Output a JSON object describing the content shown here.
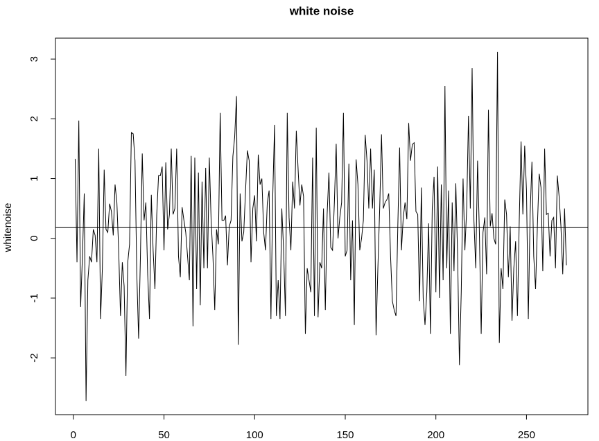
{
  "chart_data": {
    "type": "line",
    "title": "white noise",
    "ylabel": "whitenoise",
    "x": [
      1,
      2,
      3,
      4,
      5,
      6,
      7,
      8,
      9,
      10,
      11,
      12,
      13,
      14,
      15,
      16,
      17,
      18,
      19,
      20,
      21,
      22,
      23,
      24,
      25,
      26,
      27,
      28,
      29,
      30,
      31,
      32,
      33,
      34,
      35,
      36,
      37,
      38,
      39,
      40,
      41,
      42,
      43,
      44,
      45,
      46,
      47,
      48,
      49,
      50,
      51,
      52,
      53,
      54,
      55,
      56,
      57,
      58,
      59,
      60,
      61,
      62,
      63,
      64,
      65,
      66,
      67,
      68,
      69,
      70,
      71,
      72,
      73,
      74,
      75,
      76,
      77,
      78,
      79,
      80,
      81,
      82,
      83,
      84,
      85,
      86,
      87,
      88,
      89,
      90,
      91,
      92,
      93,
      94,
      95,
      96,
      97,
      98,
      99,
      100,
      101,
      102,
      103,
      104,
      105,
      106,
      107,
      108,
      109,
      110,
      111,
      112,
      113,
      114,
      115,
      116,
      117,
      118,
      119,
      120,
      121,
      122,
      123,
      124,
      125,
      126,
      127,
      128,
      129,
      130,
      131,
      132,
      133,
      134,
      135,
      136,
      137,
      138,
      139,
      140,
      141,
      142,
      143,
      144,
      145,
      146,
      147,
      148,
      149,
      150,
      151,
      152,
      153,
      154,
      155,
      156,
      157,
      158,
      159,
      160,
      161,
      162,
      163,
      164,
      165,
      166,
      167,
      168,
      169,
      170,
      171,
      172,
      173,
      174,
      175,
      176,
      177,
      178,
      179,
      180,
      181,
      182,
      183,
      184,
      185,
      186,
      187,
      188,
      189,
      190,
      191,
      192,
      193,
      194,
      195,
      196,
      197,
      198,
      199,
      200,
      201,
      202,
      203,
      204,
      205,
      206,
      207,
      208,
      209,
      210,
      211,
      212,
      213,
      214,
      215,
      216,
      217,
      218,
      219,
      220,
      221,
      222,
      223,
      224,
      225,
      226,
      227,
      228,
      229,
      230,
      231,
      232,
      233,
      234,
      235,
      236,
      237,
      238,
      239,
      240,
      241,
      242,
      243,
      244,
      245,
      246,
      247,
      248,
      249,
      250,
      251,
      252,
      253,
      254,
      255,
      256,
      257,
      258,
      259,
      260,
      261,
      262,
      263,
      264,
      265,
      266,
      267,
      268,
      269,
      270,
      271,
      272
    ],
    "values": [
      1.33,
      -0.4,
      1.97,
      -1.15,
      -0.3,
      0.75,
      -2.72,
      -0.7,
      -0.3,
      -0.4,
      0.15,
      0.05,
      -0.4,
      1.5,
      -1.35,
      -0.5,
      1.15,
      0.15,
      0.1,
      0.58,
      0.45,
      0.05,
      0.9,
      0.6,
      -0.2,
      -1.3,
      -0.4,
      -0.8,
      -2.3,
      -0.4,
      -0.1,
      1.77,
      1.75,
      1.3,
      -0.6,
      -1.68,
      -0.3,
      1.42,
      0.3,
      0.6,
      -0.6,
      -1.35,
      0.73,
      -0.2,
      -0.85,
      0.4,
      1.05,
      1.05,
      1.2,
      -0.2,
      1.27,
      0.15,
      0.4,
      1.5,
      0.4,
      0.5,
      1.5,
      -0.3,
      -0.65,
      0.52,
      0.3,
      0.1,
      -0.3,
      -0.7,
      1.38,
      -1.47,
      1.35,
      -0.85,
      1.1,
      -1.12,
      0.95,
      -0.5,
      1.18,
      -0.5,
      1.35,
      0.3,
      -0.3,
      -1.2,
      0.15,
      -0.1,
      2.1,
      0.3,
      0.3,
      0.38,
      -0.45,
      0.2,
      0.3,
      1.37,
      1.7,
      2.38,
      -1.78,
      0.75,
      -0.05,
      0.1,
      0.8,
      1.47,
      1.3,
      -0.4,
      0.5,
      0.72,
      -0.05,
      1.4,
      0.9,
      1.0,
      0.1,
      -0.2,
      0.6,
      0.8,
      -1.35,
      0.7,
      1.9,
      -1.3,
      -0.7,
      -1.35,
      0.5,
      -0.2,
      -1.3,
      2.1,
      0.35,
      -0.2,
      0.95,
      0.5,
      1.8,
      1.15,
      0.55,
      0.9,
      0.7,
      -1.6,
      -0.5,
      -0.7,
      -0.9,
      1.35,
      -1.3,
      1.85,
      -1.32,
      -0.4,
      -0.5,
      0.5,
      -1.2,
      0.4,
      1.1,
      -0.15,
      -0.2,
      0.6,
      1.58,
      0.0,
      0.35,
      0.6,
      2.1,
      -0.3,
      -0.2,
      1.25,
      -0.7,
      0.3,
      -1.45,
      1.32,
      0.9,
      -0.2,
      0.0,
      0.3,
      1.73,
      1.3,
      0.5,
      1.5,
      0.5,
      1.15,
      -1.62,
      -0.5,
      0.5,
      1.74,
      0.5,
      0.6,
      0.65,
      0.75,
      -0.3,
      -1.05,
      -1.2,
      -1.3,
      0.2,
      1.52,
      -0.2,
      0.35,
      0.6,
      0.32,
      1.93,
      1.3,
      1.57,
      1.6,
      0.45,
      0.4,
      -1.05,
      0.85,
      -1.0,
      -1.45,
      -0.9,
      0.25,
      -1.6,
      0.5,
      1.03,
      -0.9,
      1.2,
      -1.0,
      0.9,
      -0.7,
      2.55,
      -0.5,
      0.8,
      -1.6,
      0.6,
      -0.55,
      0.92,
      -0.3,
      -2.12,
      -0.9,
      1.0,
      -0.2,
      0.5,
      2.05,
      0.5,
      2.85,
      0.3,
      -0.5,
      1.3,
      0.1,
      -1.6,
      0.1,
      0.35,
      -0.6,
      2.15,
      0.2,
      0.42,
      0.0,
      -0.1,
      3.12,
      -1.75,
      -0.5,
      -0.85,
      0.65,
      0.4,
      -0.65,
      0.2,
      -1.38,
      -0.5,
      -0.05,
      -1.3,
      0.3,
      1.62,
      0.4,
      1.55,
      0.8,
      -1.35,
      0.4,
      1.28,
      -0.3,
      -0.85,
      0.2,
      1.08,
      0.85,
      -0.55,
      1.5,
      0.4,
      0.42,
      -0.3,
      0.3,
      0.35,
      -0.5,
      1.05,
      0.7,
      0.2,
      -0.6,
      0.5,
      -0.45
    ],
    "color": "#000000",
    "hline": 0.18,
    "xlim": [
      -9.88,
      283.88
    ],
    "xticks": [
      0,
      50,
      100,
      150,
      200,
      250
    ],
    "ylim": [
      -2.95,
      3.35
    ],
    "yticks": [
      -2,
      -1,
      0,
      1,
      2,
      3
    ]
  }
}
